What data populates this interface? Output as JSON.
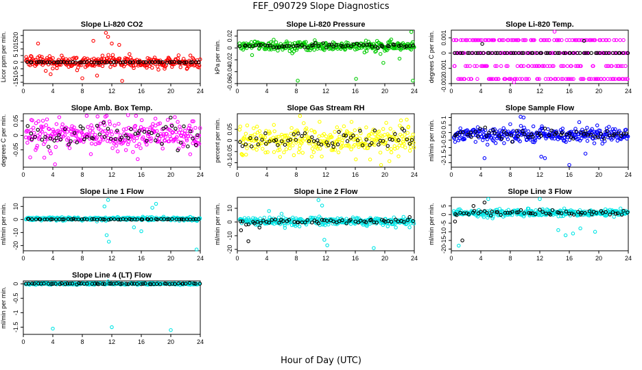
{
  "figure": {
    "title": "FEF_090729  Slope Diagnostics",
    "xlabel": "Hour of Day (UTC)"
  },
  "colors": {
    "highlight": "#000000",
    "red": "#ff0000",
    "green": "#00cc00",
    "magenta": "#ff00ff",
    "yellow": "#ffff00",
    "blue": "#0000ff",
    "cyan": "#00e5e5"
  },
  "chart_data": [
    {
      "type": "scatter",
      "title": "Slope Li-820 CO2",
      "ylabel": "Licor ppm per min.",
      "xlim": [
        0,
        24
      ],
      "xticks": [
        0,
        4,
        8,
        12,
        16,
        20,
        24
      ],
      "ylim": [
        -16,
        24
      ],
      "yticks": [
        -15,
        -10,
        -5,
        0,
        5,
        10,
        15,
        20
      ],
      "grid": false,
      "series": [
        {
          "color": "red",
          "center": 0,
          "spread": 4,
          "outliers": [
            [
              2.0,
              14
            ],
            [
              9.5,
              16
            ],
            [
              11.2,
              22
            ],
            [
              11.5,
              19
            ],
            [
              12.0,
              14
            ],
            [
              13.0,
              13
            ],
            [
              10.0,
              -10
            ],
            [
              13.4,
              -14
            ],
            [
              8.0,
              -12
            ],
            [
              3.7,
              -9
            ]
          ]
        },
        {
          "color": "highlight",
          "center": 0,
          "spread": 0.2,
          "outliers": []
        }
      ]
    },
    {
      "type": "scatter",
      "title": "Slope Li-820 Pressure",
      "ylabel": "kPa per min.",
      "xlim": [
        0,
        24
      ],
      "xticks": [
        0,
        4,
        8,
        12,
        16,
        20,
        24
      ],
      "ylim": [
        -0.06,
        0.03
      ],
      "yticks": [
        -0.06,
        -0.04,
        -0.02,
        0.0,
        0.02
      ],
      "grid": false,
      "series": [
        {
          "color": "green",
          "center": 0.003,
          "spread": 0.007,
          "outliers": [
            [
              8.2,
              -0.055
            ],
            [
              16.1,
              -0.052
            ],
            [
              23.8,
              -0.055
            ],
            [
              19.8,
              -0.025
            ],
            [
              22.0,
              -0.018
            ],
            [
              23.6,
              0.027
            ],
            [
              2.0,
              -0.012
            ]
          ]
        },
        {
          "color": "highlight",
          "center": 0.004,
          "spread": 0.003,
          "outliers": []
        }
      ]
    },
    {
      "type": "scatter",
      "title": "Slope Li-820 Temp.",
      "ylabel": "degrees C per min.",
      "xlim": [
        0,
        24
      ],
      "xticks": [
        0,
        4,
        8,
        12,
        16,
        20,
        24
      ],
      "ylim": [
        -0.002,
        0.0015
      ],
      "yticks": [
        -0.002,
        -0.001,
        0.0,
        0.001
      ],
      "grid": false,
      "series": [
        {
          "color": "magenta",
          "levels": [
            -0.0017,
            -0.00085,
            0.0,
            0.00085
          ],
          "outliers": [
            [
              14.0,
              0.0014
            ],
            [
              8.5,
              -0.0019
            ]
          ]
        },
        {
          "color": "highlight",
          "levels": [
            0.0
          ],
          "outliers": [
            [
              4.2,
              0.0006
            ],
            [
              18.0,
              0.0008
            ]
          ]
        }
      ]
    },
    {
      "type": "scatter",
      "title": "Slope Amb. Box Temp.",
      "ylabel": "degrees C per min.",
      "xlim": [
        0,
        24
      ],
      "xticks": [
        0,
        4,
        8,
        12,
        16,
        20,
        24
      ],
      "ylim": [
        -0.11,
        0.075
      ],
      "yticks": [
        -0.05,
        0.0,
        0.05
      ],
      "grid": false,
      "series": [
        {
          "color": "magenta",
          "center": 0.0,
          "spread": 0.05,
          "outliers": [
            [
              4.3,
              -0.1
            ],
            [
              14.2,
              0.07
            ]
          ]
        },
        {
          "color": "highlight",
          "center": 0.0,
          "spread": 0.035,
          "outliers": []
        }
      ]
    },
    {
      "type": "scatter",
      "title": "Slope Gas Stream RH",
      "ylabel": "percent per min.",
      "xlim": [
        0,
        24
      ],
      "xticks": [
        0,
        4,
        8,
        12,
        16,
        20,
        24
      ],
      "ylim": [
        -0.12,
        0.12
      ],
      "yticks": [
        -0.1,
        -0.05,
        0.0,
        0.05
      ],
      "grid": false,
      "series": [
        {
          "color": "yellow",
          "center": 0.0,
          "spread": 0.06,
          "outliers": [
            [
              8.5,
              0.11
            ],
            [
              19.5,
              -0.11
            ],
            [
              22.2,
              0.09
            ]
          ]
        },
        {
          "color": "highlight",
          "center": 0.0,
          "spread": 0.04,
          "outliers": []
        }
      ]
    },
    {
      "type": "scatter",
      "title": "Slope Sample Flow",
      "ylabel": "ml/min per min.",
      "xlim": [
        0,
        24
      ],
      "xticks": [
        0,
        4,
        8,
        12,
        16,
        20,
        24
      ],
      "ylim": [
        -2.3,
        1.25
      ],
      "yticks": [
        -2.0,
        -1.5,
        -1.0,
        -0.5,
        0.0,
        0.5,
        1.0
      ],
      "grid": false,
      "series": [
        {
          "color": "blue",
          "center": -0.15,
          "spread": 0.45,
          "outliers": [
            [
              9.4,
              1.05
            ],
            [
              9.8,
              1.0
            ],
            [
              16.0,
              -2.15
            ],
            [
              4.5,
              -1.7
            ],
            [
              12.2,
              -1.6
            ],
            [
              12.7,
              -1.7
            ],
            [
              18.2,
              -1.4
            ]
          ]
        },
        {
          "color": "highlight",
          "center": -0.1,
          "spread": 0.3,
          "outliers": []
        }
      ]
    },
    {
      "type": "scatter",
      "title": "Slope Line 1 Flow",
      "ylabel": "ml/min per min.",
      "xlim": [
        0,
        24
      ],
      "xticks": [
        0,
        4,
        8,
        12,
        16,
        20,
        24
      ],
      "ylim": [
        -24,
        17
      ],
      "yticks": [
        -20,
        -10,
        0,
        10
      ],
      "grid": false,
      "series": [
        {
          "color": "cyan",
          "center": 0.5,
          "spread": 1.2,
          "outliers": [
            [
              11.5,
              15
            ],
            [
              11.0,
              10
            ],
            [
              18.0,
              12
            ],
            [
              17.5,
              9
            ],
            [
              11.3,
              -12
            ],
            [
              11.6,
              -17
            ],
            [
              23.5,
              -23
            ],
            [
              16.0,
              -9
            ],
            [
              15.0,
              -6
            ]
          ]
        },
        {
          "color": "highlight",
          "center": 0.2,
          "spread": 0.3,
          "outliers": []
        }
      ]
    },
    {
      "type": "scatter",
      "title": "Slope Line 2 Flow",
      "ylabel": "ml/min per min.",
      "xlim": [
        0,
        24
      ],
      "xticks": [
        0,
        4,
        8,
        12,
        16,
        20,
        24
      ],
      "ylim": [
        -21,
        18
      ],
      "yticks": [
        -20,
        -10,
        0,
        10
      ],
      "grid": false,
      "series": [
        {
          "color": "cyan",
          "center": 0.5,
          "spread": 2.5,
          "outliers": [
            [
              11.0,
              16
            ],
            [
              11.5,
              12
            ],
            [
              12.2,
              -17
            ],
            [
              11.8,
              -13
            ],
            [
              18.5,
              -19
            ],
            [
              4.3,
              8
            ],
            [
              6.0,
              6
            ]
          ]
        },
        {
          "color": "highlight",
          "center": 0.5,
          "spread": 1.5,
          "outliers": [
            [
              1.5,
              -14
            ],
            [
              0.5,
              -6
            ],
            [
              3.0,
              -4
            ]
          ]
        }
      ]
    },
    {
      "type": "scatter",
      "title": "Slope Line 3 Flow",
      "ylabel": "ml/min per min.",
      "xlim": [
        0,
        24
      ],
      "xticks": [
        0,
        4,
        8,
        12,
        16,
        20,
        24
      ],
      "ylim": [
        -21,
        10
      ],
      "yticks": [
        -20,
        -15,
        -10,
        -5,
        0,
        5
      ],
      "grid": false,
      "series": [
        {
          "color": "cyan",
          "center": 1.0,
          "spread": 2.0,
          "outliers": [
            [
              5.0,
              9
            ],
            [
              12.0,
              9
            ],
            [
              1.0,
              -18
            ],
            [
              14.5,
              -9
            ],
            [
              15.5,
              -12
            ],
            [
              16.5,
              -11
            ],
            [
              17.5,
              -8
            ],
            [
              19.5,
              -10
            ]
          ]
        },
        {
          "color": "highlight",
          "center": 1.0,
          "spread": 1.5,
          "outliers": [
            [
              1.5,
              -15
            ],
            [
              0.5,
              -4
            ],
            [
              3.0,
              5
            ],
            [
              4.5,
              7
            ]
          ]
        }
      ]
    },
    {
      "type": "scatter",
      "title": "Slope Line 4 (LT) Flow",
      "ylabel": "ml/min per min.",
      "xlim": [
        0,
        24
      ],
      "xticks": [
        0,
        4,
        8,
        12,
        16,
        20,
        24
      ],
      "ylim": [
        -1.75,
        0.1
      ],
      "yticks": [
        -1.5,
        -1.0,
        -0.5,
        0.0
      ],
      "grid": false,
      "series": [
        {
          "color": "cyan",
          "center": 0.0,
          "spread": 0.03,
          "outliers": [
            [
              4.0,
              -1.55
            ],
            [
              12.0,
              -1.5
            ],
            [
              20.0,
              -1.6
            ],
            [
              11.5,
              0.08
            ]
          ]
        },
        {
          "color": "highlight",
          "center": 0.0,
          "spread": 0.015,
          "outliers": []
        }
      ]
    }
  ]
}
